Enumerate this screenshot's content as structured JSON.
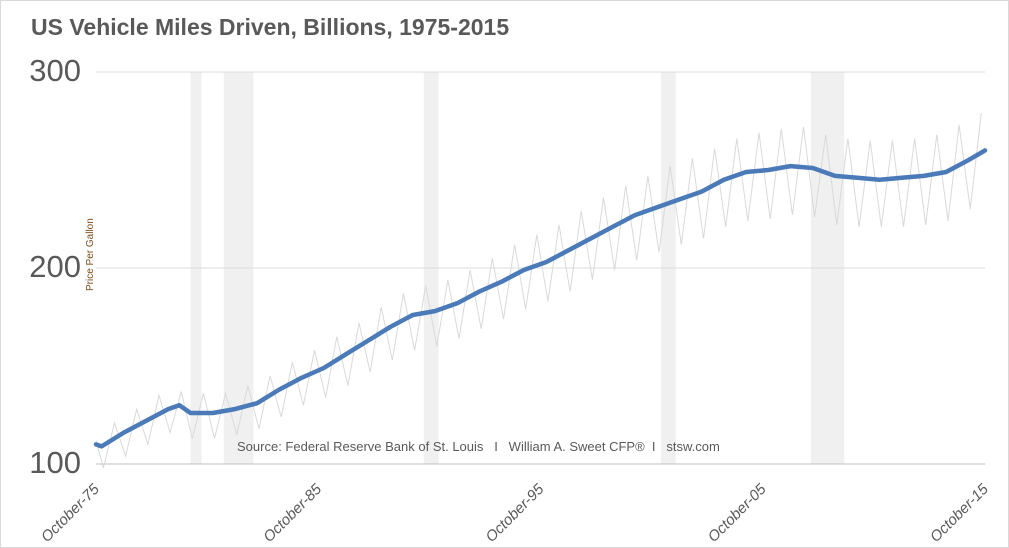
{
  "chart_data": {
    "type": "line",
    "title": "US Vehicle Miles Driven, Billions, 1975-2015",
    "ylabel": "Price Per Gallon",
    "source": "Source: Federal Reserve Bank of St. Louis   I   William A. Sweet CFP®  I   stsw.com",
    "ylim": [
      100,
      300
    ],
    "yticks": [
      "100",
      "200",
      "300"
    ],
    "xlim": [
      "1975-10",
      "2015-10"
    ],
    "xticks": [
      {
        "date": "1975-10",
        "label": "October-75"
      },
      {
        "date": "1985-10",
        "label": "October-85"
      },
      {
        "date": "1995-10",
        "label": "October-95"
      },
      {
        "date": "2005-10",
        "label": "October-05"
      },
      {
        "date": "2015-10",
        "label": "October-15"
      }
    ],
    "grid": true,
    "recessions": [
      [
        "1980-01",
        "1980-07"
      ],
      [
        "1981-07",
        "1982-11"
      ],
      [
        "1990-07",
        "1991-03"
      ],
      [
        "2001-03",
        "2001-11"
      ],
      [
        "2007-12",
        "2009-06"
      ]
    ],
    "colors": {
      "trend": "#4a7ab8",
      "monthly": "#d9d9d9",
      "recession": "#f0f0f0",
      "grid": "#dddddd"
    },
    "series": [
      {
        "style": "thick-trend",
        "x": [
          "1975-10",
          "1976-01",
          "1977-01",
          "1978-01",
          "1979-01",
          "1979-07",
          "1980-01",
          "1981-01",
          "1982-01",
          "1983-01",
          "1984-01",
          "1985-01",
          "1986-01",
          "1987-01",
          "1988-01",
          "1989-01",
          "1990-01",
          "1991-01",
          "1992-01",
          "1993-01",
          "1994-01",
          "1995-01",
          "1996-01",
          "1997-01",
          "1998-01",
          "1999-01",
          "2000-01",
          "2001-01",
          "2002-01",
          "2003-01",
          "2004-01",
          "2005-01",
          "2006-01",
          "2007-01",
          "2008-01",
          "2009-01",
          "2010-01",
          "2011-01",
          "2012-01",
          "2013-01",
          "2014-01",
          "2015-01",
          "2015-10"
        ],
        "values": [
          110,
          109,
          116,
          122,
          128,
          130,
          126,
          126,
          128,
          131,
          138,
          144,
          149,
          156,
          163,
          170,
          176,
          178,
          182,
          188,
          193,
          199,
          203,
          209,
          215,
          221,
          227,
          231,
          235,
          239,
          245,
          249,
          250,
          252,
          251,
          247,
          246,
          245,
          246,
          247,
          249,
          255,
          260
        ]
      },
      {
        "style": "thin-monthly",
        "years": [
          1976,
          1977,
          1978,
          1979,
          1980,
          1981,
          1982,
          1983,
          1984,
          1985,
          1986,
          1987,
          1988,
          1989,
          1990,
          1991,
          1992,
          1993,
          1994,
          1995,
          1996,
          1997,
          1998,
          1999,
          2000,
          2001,
          2002,
          2003,
          2004,
          2005,
          2006,
          2007,
          2008,
          2009,
          2010,
          2011,
          2012,
          2013,
          2014,
          2015
        ],
        "start": {
          "date": "1975-10",
          "value": 112
        },
        "feb_lows": [
          98,
          104,
          110,
          116,
          113,
          113,
          115,
          118,
          124,
          130,
          134,
          140,
          147,
          153,
          158,
          160,
          164,
          169,
          174,
          179,
          183,
          188,
          194,
          199,
          204,
          208,
          212,
          215,
          221,
          224,
          225,
          227,
          226,
          222,
          221,
          221,
          221,
          222,
          224,
          230
        ],
        "aug_highs": [
          121,
          128,
          135,
          137,
          136,
          136,
          140,
          145,
          152,
          158,
          165,
          172,
          180,
          187,
          191,
          194,
          199,
          205,
          212,
          217,
          222,
          229,
          236,
          242,
          247,
          252,
          256,
          261,
          266,
          269,
          271,
          272,
          268,
          266,
          265,
          265,
          266,
          268,
          273,
          279
        ]
      }
    ]
  }
}
